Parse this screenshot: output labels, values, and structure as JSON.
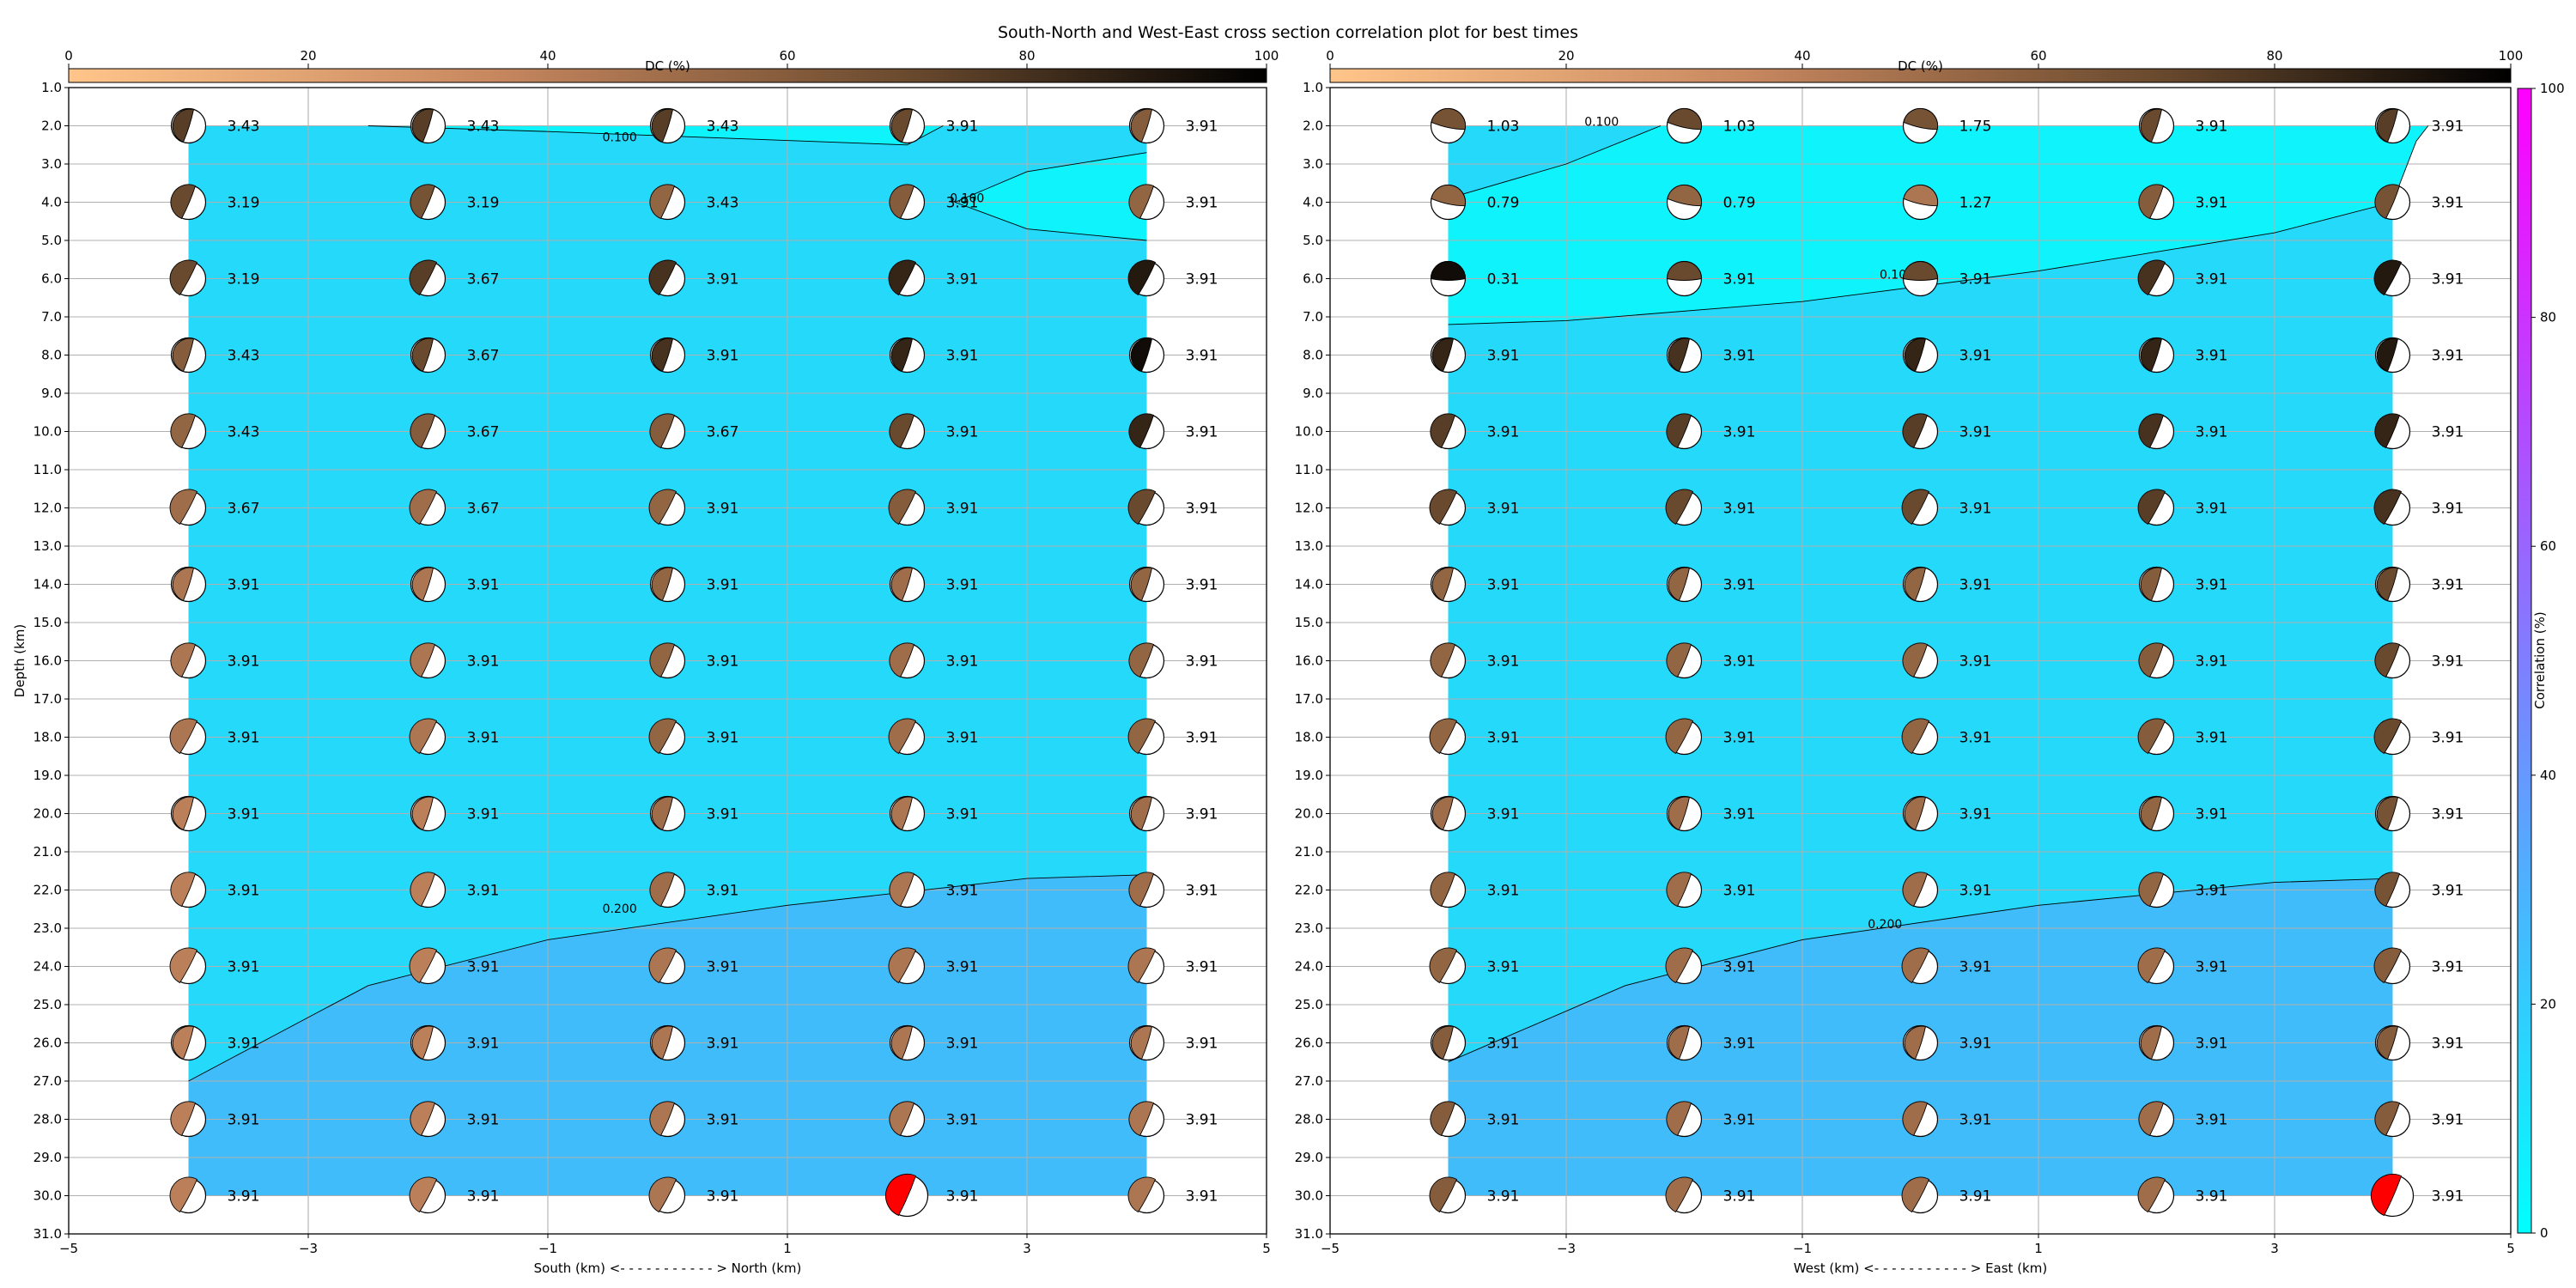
{
  "title": "South-North and West-East cross section correlation plot for best times",
  "colorbar_dc": {
    "label": "DC (%)",
    "ticks": [
      "0",
      "20",
      "40",
      "60",
      "80",
      "100"
    ]
  },
  "colorbar_corr": {
    "label": "Correlation (%)",
    "ticks": [
      "0",
      "20",
      "40",
      "60",
      "80",
      "100"
    ]
  },
  "colors": {
    "level0": "#0ff3fd",
    "level1": "#25d9fa",
    "level2": "#3fbcf9",
    "highlight": "#ff0000"
  },
  "chart_data": [
    {
      "type": "heatmap",
      "xlabel": "South (km) <- - - - - - - - - - - > North (km)",
      "ylabel": "Depth (km)",
      "xlim": [
        -5,
        5
      ],
      "ylim": [
        31,
        1
      ],
      "xticks": [
        "−5",
        "−3",
        "−1",
        "1",
        "3",
        "5"
      ],
      "yticks": [
        "1.0",
        "2.0",
        "3.0",
        "4.0",
        "5.0",
        "6.0",
        "7.0",
        "8.0",
        "9.0",
        "10.0",
        "11.0",
        "12.0",
        "13.0",
        "14.0",
        "15.0",
        "16.0",
        "17.0",
        "18.0",
        "19.0",
        "20.0",
        "21.0",
        "22.0",
        "23.0",
        "24.0",
        "25.0",
        "26.0",
        "27.0",
        "28.0",
        "29.0",
        "30.0",
        "31.0"
      ],
      "grid": true,
      "x": [
        -4,
        -2,
        0,
        2,
        4
      ],
      "depths": [
        2,
        4,
        6,
        8,
        10,
        12,
        14,
        16,
        18,
        20,
        22,
        24,
        26,
        28,
        30
      ],
      "values": [
        [
          "3.43",
          "3.43",
          "3.43",
          "3.91",
          "3.91"
        ],
        [
          "3.19",
          "3.19",
          "3.43",
          "3.91",
          "3.91"
        ],
        [
          "3.19",
          "3.67",
          "3.91",
          "3.91",
          "3.91"
        ],
        [
          "3.43",
          "3.67",
          "3.91",
          "3.91",
          "3.91"
        ],
        [
          "3.43",
          "3.67",
          "3.67",
          "3.91",
          "3.91"
        ],
        [
          "3.67",
          "3.67",
          "3.91",
          "3.91",
          "3.91"
        ],
        [
          "3.91",
          "3.91",
          "3.91",
          "3.91",
          "3.91"
        ],
        [
          "3.91",
          "3.91",
          "3.91",
          "3.91",
          "3.91"
        ],
        [
          "3.91",
          "3.91",
          "3.91",
          "3.91",
          "3.91"
        ],
        [
          "3.91",
          "3.91",
          "3.91",
          "3.91",
          "3.91"
        ],
        [
          "3.91",
          "3.91",
          "3.91",
          "3.91",
          "3.91"
        ],
        [
          "3.91",
          "3.91",
          "3.91",
          "3.91",
          "3.91"
        ],
        [
          "3.91",
          "3.91",
          "3.91",
          "3.91",
          "3.91"
        ],
        [
          "3.91",
          "3.91",
          "3.91",
          "3.91",
          "3.91"
        ],
        [
          "3.91",
          "3.91",
          "3.91",
          "3.91",
          "3.91"
        ]
      ],
      "dc_percent": [
        [
          75,
          75,
          75,
          70,
          60
        ],
        [
          70,
          65,
          55,
          60,
          55
        ],
        [
          70,
          75,
          80,
          85,
          90
        ],
        [
          60,
          70,
          80,
          85,
          95
        ],
        [
          55,
          60,
          60,
          70,
          85
        ],
        [
          50,
          50,
          55,
          60,
          70
        ],
        [
          45,
          45,
          55,
          50,
          55
        ],
        [
          45,
          45,
          55,
          50,
          55
        ],
        [
          45,
          45,
          55,
          50,
          55
        ],
        [
          40,
          40,
          50,
          45,
          50
        ],
        [
          40,
          40,
          50,
          45,
          50
        ],
        [
          40,
          40,
          45,
          45,
          45
        ],
        [
          40,
          40,
          45,
          45,
          45
        ],
        [
          40,
          40,
          45,
          45,
          45
        ],
        [
          40,
          40,
          45,
          0,
          45
        ]
      ],
      "best_solution": {
        "x": 2,
        "depth": 30
      },
      "contours": [
        {
          "label": "0.100",
          "points": [
            [
              -2.5,
              2.0
            ],
            [
              -1.0,
              2.15
            ],
            [
              2.0,
              2.5
            ],
            [
              2.3,
              2.0
            ]
          ]
        },
        {
          "label": "0.100",
          "points": [
            [
              4.0,
              2.7
            ],
            [
              3.0,
              3.2
            ],
            [
              2.4,
              4.0
            ],
            [
              3.0,
              4.7
            ],
            [
              4.0,
              5.0
            ]
          ]
        },
        {
          "label": "0.200",
          "points": [
            [
              -4.0,
              27.0
            ],
            [
              -2.5,
              24.5
            ],
            [
              -1.0,
              23.3
            ],
            [
              1.0,
              22.4
            ],
            [
              3.0,
              21.7
            ],
            [
              4.0,
              21.6
            ]
          ]
        }
      ],
      "contour_label_positions": [
        [
          -0.4,
          2.4
        ],
        [
          2.5,
          4.0
        ],
        [
          -0.4,
          22.6
        ]
      ],
      "fills": [
        {
          "level": 0,
          "polygon": [
            [
              -2.5,
              2.0
            ],
            [
              -1.0,
              2.15
            ],
            [
              2.0,
              2.5
            ],
            [
              2.3,
              2.0
            ]
          ]
        },
        {
          "level": 0,
          "polygon": [
            [
              4.0,
              2.7
            ],
            [
              3.0,
              3.2
            ],
            [
              2.4,
              4.0
            ],
            [
              3.0,
              4.7
            ],
            [
              4.0,
              5.0
            ]
          ]
        },
        {
          "level": 2,
          "polygon": [
            [
              -4.0,
              27.0
            ],
            [
              -2.5,
              24.5
            ],
            [
              -1.0,
              23.3
            ],
            [
              1.0,
              22.4
            ],
            [
              3.0,
              21.7
            ],
            [
              4.0,
              21.6
            ],
            [
              4.0,
              30
            ],
            [
              -4.0,
              30
            ]
          ]
        }
      ]
    },
    {
      "type": "heatmap",
      "xlabel": "West (km) <- - - - - - - - - - - > East (km)",
      "ylabel": "",
      "xlim": [
        -5,
        5
      ],
      "ylim": [
        31,
        1
      ],
      "xticks": [
        "−5",
        "−3",
        "−1",
        "1",
        "3",
        "5"
      ],
      "yticks": [
        "1.0",
        "2.0",
        "3.0",
        "4.0",
        "5.0",
        "6.0",
        "7.0",
        "8.0",
        "9.0",
        "10.0",
        "11.0",
        "12.0",
        "13.0",
        "14.0",
        "15.0",
        "16.0",
        "17.0",
        "18.0",
        "19.0",
        "20.0",
        "21.0",
        "22.0",
        "23.0",
        "24.0",
        "25.0",
        "26.0",
        "27.0",
        "28.0",
        "29.0",
        "30.0",
        "31.0"
      ],
      "grid": true,
      "x": [
        -4,
        -2,
        0,
        2,
        4
      ],
      "depths": [
        2,
        4,
        6,
        8,
        10,
        12,
        14,
        16,
        18,
        20,
        22,
        24,
        26,
        28,
        30
      ],
      "values": [
        [
          "1.03",
          "1.03",
          "1.75",
          "3.91",
          "3.91"
        ],
        [
          "0.79",
          "0.79",
          "1.27",
          "3.91",
          "3.91"
        ],
        [
          "0.31",
          "3.91",
          "3.91",
          "3.91",
          "3.91"
        ],
        [
          "3.91",
          "3.91",
          "3.91",
          "3.91",
          "3.91"
        ],
        [
          "3.91",
          "3.91",
          "3.91",
          "3.91",
          "3.91"
        ],
        [
          "3.91",
          "3.91",
          "3.91",
          "3.91",
          "3.91"
        ],
        [
          "3.91",
          "3.91",
          "3.91",
          "3.91",
          "3.91"
        ],
        [
          "3.91",
          "3.91",
          "3.91",
          "3.91",
          "3.91"
        ],
        [
          "3.91",
          "3.91",
          "3.91",
          "3.91",
          "3.91"
        ],
        [
          "3.91",
          "3.91",
          "3.91",
          "3.91",
          "3.91"
        ],
        [
          "3.91",
          "3.91",
          "3.91",
          "3.91",
          "3.91"
        ],
        [
          "3.91",
          "3.91",
          "3.91",
          "3.91",
          "3.91"
        ],
        [
          "3.91",
          "3.91",
          "3.91",
          "3.91",
          "3.91"
        ],
        [
          "3.91",
          "3.91",
          "3.91",
          "3.91",
          "3.91"
        ],
        [
          "3.91",
          "3.91",
          "3.91",
          "3.91",
          "3.91"
        ]
      ],
      "dc_percent": [
        [
          65,
          70,
          65,
          70,
          75
        ],
        [
          55,
          55,
          45,
          60,
          65
        ],
        [
          95,
          70,
          70,
          80,
          90
        ],
        [
          85,
          80,
          85,
          85,
          90
        ],
        [
          75,
          75,
          75,
          80,
          85
        ],
        [
          70,
          70,
          70,
          75,
          80
        ],
        [
          55,
          55,
          55,
          60,
          70
        ],
        [
          55,
          55,
          55,
          60,
          70
        ],
        [
          55,
          55,
          55,
          60,
          70
        ],
        [
          50,
          50,
          50,
          55,
          65
        ],
        [
          55,
          50,
          50,
          55,
          65
        ],
        [
          55,
          50,
          50,
          50,
          60
        ],
        [
          60,
          50,
          50,
          50,
          60
        ],
        [
          60,
          50,
          50,
          50,
          60
        ],
        [
          60,
          50,
          50,
          50,
          0
        ]
      ],
      "best_solution": {
        "x": 4,
        "depth": 30
      },
      "contours": [
        {
          "label": "0.100",
          "points": [
            [
              -4.0,
              3.9
            ],
            [
              -3.0,
              3.0
            ],
            [
              -2.2,
              2.0
            ]
          ]
        },
        {
          "label": "0.100",
          "points": [
            [
              -4.0,
              7.2
            ],
            [
              -3.0,
              7.1
            ],
            [
              -1.0,
              6.6
            ],
            [
              1.0,
              5.8
            ],
            [
              3.0,
              4.8
            ],
            [
              4.0,
              4.0
            ],
            [
              4.2,
              2.4
            ],
            [
              4.3,
              2.0
            ]
          ]
        },
        {
          "label": "0.200",
          "points": [
            [
              -4.0,
              26.5
            ],
            [
              -2.5,
              24.5
            ],
            [
              -1.0,
              23.3
            ],
            [
              1.0,
              22.4
            ],
            [
              3.0,
              21.8
            ],
            [
              4.0,
              21.7
            ]
          ]
        }
      ],
      "contour_label_positions": [
        [
          -2.7,
          2.0
        ],
        [
          -0.2,
          6.0
        ],
        [
          -0.3,
          23.0
        ]
      ],
      "fills": [
        {
          "level": 0,
          "polygon": [
            [
              -4.0,
              3.9
            ],
            [
              -3.0,
              3.0
            ],
            [
              -2.2,
              2.0
            ],
            [
              4.3,
              2.0
            ],
            [
              4.2,
              2.4
            ],
            [
              4.0,
              4.0
            ],
            [
              3.0,
              4.8
            ],
            [
              1.0,
              5.8
            ],
            [
              -1.0,
              6.6
            ],
            [
              -3.0,
              7.1
            ],
            [
              -4.0,
              7.2
            ]
          ]
        },
        {
          "level": 2,
          "polygon": [
            [
              -4.0,
              26.5
            ],
            [
              -2.5,
              24.5
            ],
            [
              -1.0,
              23.3
            ],
            [
              1.0,
              22.4
            ],
            [
              3.0,
              21.8
            ],
            [
              4.0,
              21.7
            ],
            [
              4.0,
              30
            ],
            [
              -4.0,
              30
            ]
          ]
        }
      ]
    }
  ]
}
